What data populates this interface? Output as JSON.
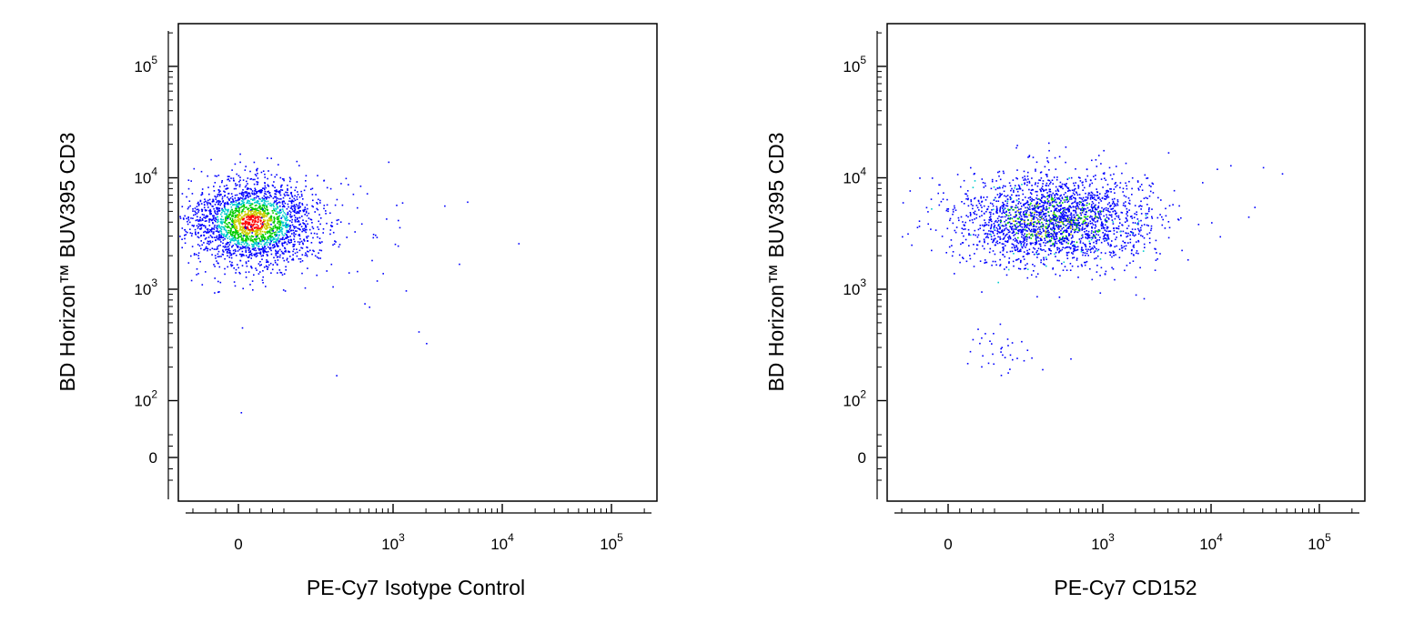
{
  "chart_data": [
    {
      "type": "scatter",
      "xlabel": "PE-Cy7 Isotype Control",
      "ylabel": "BD Horizon™ BUV395 CD3",
      "x_scale": "biexponential",
      "y_scale": "biexponential",
      "x_ticks": [
        {
          "value": 0,
          "base": "0",
          "exp": ""
        },
        {
          "value": 1000,
          "base": "10",
          "exp": "3"
        },
        {
          "value": 10000,
          "base": "10",
          "exp": "4"
        },
        {
          "value": 100000,
          "base": "10",
          "exp": "5"
        }
      ],
      "y_ticks": [
        {
          "value": 0,
          "base": "0",
          "exp": ""
        },
        {
          "value": 100,
          "base": "10",
          "exp": "2"
        },
        {
          "value": 1000,
          "base": "10",
          "exp": "3"
        },
        {
          "value": 10000,
          "base": "10",
          "exp": "4"
        },
        {
          "value": 100000,
          "base": "10",
          "exp": "5"
        }
      ],
      "xlim": [
        -300,
        250000
      ],
      "ylim": [
        -80,
        250000
      ],
      "grid": false,
      "density_colors": [
        "#0000ff",
        "#00cccc",
        "#00cc00",
        "#cccc00",
        "#ff0000"
      ],
      "populations": [
        {
          "cx": 30,
          "cy": 4000,
          "sx": 70,
          "sy": 0.19,
          "count": 2300,
          "outliers": 140,
          "color_scheme": "dense"
        }
      ],
      "points": [
        {
          "x": 14000,
          "y": 2600
        },
        {
          "x": 4000,
          "y": 1700
        },
        {
          "x": 2000,
          "y": 330
        },
        {
          "x": 1700,
          "y": 420
        },
        {
          "x": 1300,
          "y": 980
        },
        {
          "x": 1100,
          "y": 4200
        },
        {
          "x": 900,
          "y": 14000
        },
        {
          "x": 600,
          "y": 700
        },
        {
          "x": 300,
          "y": 170
        },
        {
          "x": -150,
          "y": 520
        },
        {
          "x": 5,
          "y": 80
        },
        {
          "x": 800,
          "y": 1400
        }
      ]
    },
    {
      "type": "scatter",
      "xlabel": "PE-Cy7 CD152",
      "ylabel": "BD Horizon™ BUV395 CD3",
      "x_scale": "biexponential",
      "y_scale": "biexponential",
      "x_ticks": [
        {
          "value": 0,
          "base": "0",
          "exp": ""
        },
        {
          "value": 1000,
          "base": "10",
          "exp": "3"
        },
        {
          "value": 10000,
          "base": "10",
          "exp": "4"
        },
        {
          "value": 100000,
          "base": "10",
          "exp": "5"
        }
      ],
      "y_ticks": [
        {
          "value": 0,
          "base": "0",
          "exp": ""
        },
        {
          "value": 100,
          "base": "10",
          "exp": "2"
        },
        {
          "value": 1000,
          "base": "10",
          "exp": "3"
        },
        {
          "value": 10000,
          "base": "10",
          "exp": "4"
        },
        {
          "value": 100000,
          "base": "10",
          "exp": "5"
        }
      ],
      "xlim": [
        -300,
        250000
      ],
      "ylim": [
        -80,
        250000
      ],
      "grid": false,
      "density_colors": [
        "#0000ff",
        "#00cccc",
        "#00cc00",
        "#cccc00",
        "#ff0000"
      ],
      "populations": [
        {
          "cx": 350,
          "cy": 4200,
          "sx": 0.45,
          "sy": 0.2,
          "count": 2400,
          "outliers": 0,
          "color_scheme": "sparse"
        },
        {
          "cx": 120,
          "cy": 300,
          "sx": 0.2,
          "sy": 0.12,
          "count": 35,
          "outliers": 0,
          "color_scheme": "sparse"
        }
      ],
      "points": [
        {
          "x": 45000,
          "y": 11000
        },
        {
          "x": 30000,
          "y": 12500
        },
        {
          "x": 25000,
          "y": 5500
        },
        {
          "x": 22000,
          "y": 4500
        },
        {
          "x": 15000,
          "y": 13000
        },
        {
          "x": 10000,
          "y": 4000
        },
        {
          "x": 12000,
          "y": 3000
        },
        {
          "x": 4000,
          "y": 17000
        },
        {
          "x": 3000,
          "y": 1500
        },
        {
          "x": 2000,
          "y": 900
        },
        {
          "x": 500,
          "y": 240
        },
        {
          "x": -100,
          "y": 3000
        },
        {
          "x": -150,
          "y": 1800
        }
      ]
    }
  ]
}
